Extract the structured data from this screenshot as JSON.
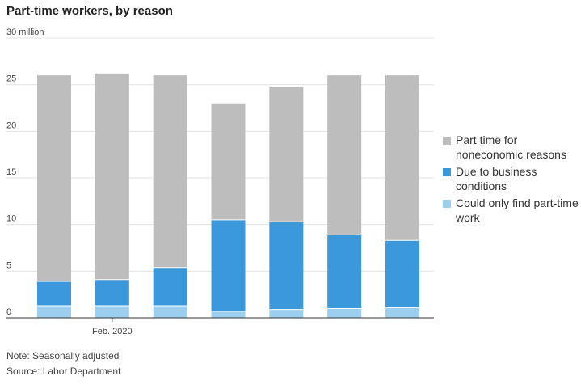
{
  "chart_data": {
    "type": "bar",
    "stacked": true,
    "title": "Part-time workers, by reason",
    "categories": [
      "",
      "Feb. 2020",
      "",
      "",
      "",
      "",
      ""
    ],
    "series": [
      {
        "name": "Could only find part-time work",
        "color": "#9ccfef",
        "values": [
          1.3,
          1.3,
          1.3,
          0.7,
          0.9,
          1.0,
          1.1
        ]
      },
      {
        "name": "Due to business conditions",
        "color": "#3a98db",
        "values": [
          2.6,
          2.8,
          4.1,
          9.8,
          9.4,
          7.9,
          7.2
        ]
      },
      {
        "name": "Part time for noneconomic reasons",
        "color": "#bdbdbd",
        "values": [
          22.1,
          22.1,
          20.6,
          12.5,
          14.5,
          17.1,
          17.7
        ]
      }
    ],
    "ylim": [
      0,
      30
    ],
    "yticks": [
      0,
      5,
      10,
      15,
      20,
      25,
      30
    ],
    "ytick_labels": [
      "0",
      "5",
      "10",
      "15",
      "20",
      "25",
      "30 million"
    ],
    "grid": true,
    "legend_position": "right"
  },
  "legend": [
    {
      "label": "Part time for noneconomic reasons",
      "color": "#bdbdbd"
    },
    {
      "label": "Due to business conditions",
      "color": "#3a98db"
    },
    {
      "label": "Could only find part-time work",
      "color": "#9ccfef"
    }
  ],
  "notes": {
    "note": "Note: Seasonally adjusted",
    "source": "Source: Labor Department"
  }
}
